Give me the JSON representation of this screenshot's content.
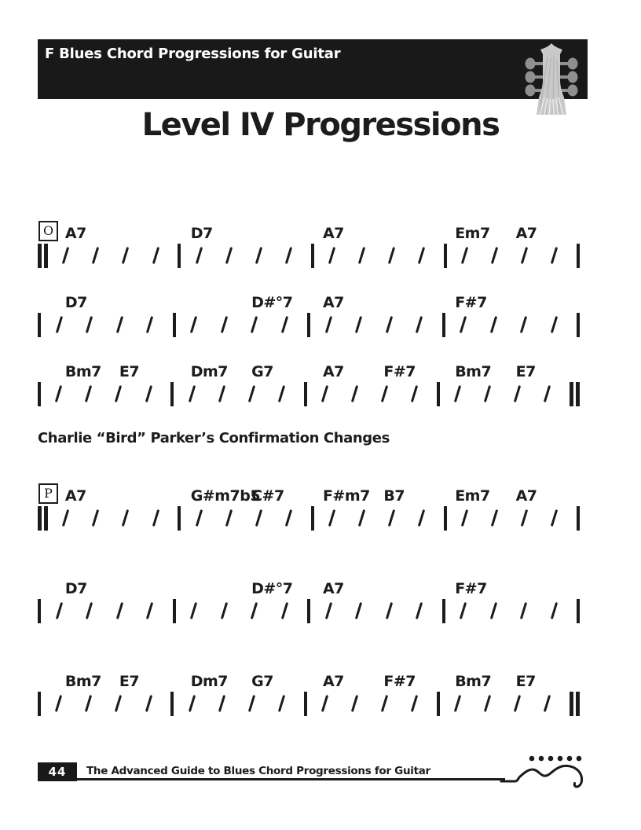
{
  "header": {
    "book_title": "F Blues Chord Progressions for Guitar"
  },
  "page_title": "Level IV Progressions",
  "section_heading": "Charlie “Bird” Parker’s Confirmation Changes",
  "beats_per_measure": 4,
  "progressions": [
    {
      "marker": "O",
      "lines": [
        {
          "start": "double",
          "end": "single",
          "measures": [
            [
              {
                "t": "A7",
                "b": 0
              }
            ],
            [
              {
                "t": "D7",
                "b": 0
              }
            ],
            [
              {
                "t": "A7",
                "b": 0
              }
            ],
            [
              {
                "t": "Em7",
                "b": 0
              },
              {
                "t": "A7",
                "b": 2
              }
            ]
          ]
        },
        {
          "start": "single",
          "end": "single",
          "measures": [
            [
              {
                "t": "D7",
                "b": 0
              }
            ],
            [
              {
                "t": "D#°7",
                "b": 2
              }
            ],
            [
              {
                "t": "A7",
                "b": 0
              }
            ],
            [
              {
                "t": "F#7",
                "b": 0
              }
            ]
          ]
        },
        {
          "start": "single",
          "end": "double",
          "measures": [
            [
              {
                "t": "Bm7",
                "b": 0
              },
              {
                "t": "E7",
                "b": 2
              }
            ],
            [
              {
                "t": "Dm7",
                "b": 0
              },
              {
                "t": "G7",
                "b": 2
              }
            ],
            [
              {
                "t": "A7",
                "b": 0
              },
              {
                "t": "F#7",
                "b": 2
              }
            ],
            [
              {
                "t": "Bm7",
                "b": 0
              },
              {
                "t": "E7",
                "b": 2
              }
            ]
          ]
        }
      ]
    },
    {
      "marker": "P",
      "lines": [
        {
          "start": "double",
          "end": "single",
          "measures": [
            [
              {
                "t": "A7",
                "b": 0
              }
            ],
            [
              {
                "t": "G#m7b5",
                "b": 0
              },
              {
                "t": "C#7",
                "b": 2
              }
            ],
            [
              {
                "t": "F#m7",
                "b": 0
              },
              {
                "t": "B7",
                "b": 2
              }
            ],
            [
              {
                "t": "Em7",
                "b": 0
              },
              {
                "t": "A7",
                "b": 2
              }
            ]
          ]
        },
        {
          "start": "single",
          "end": "single",
          "measures": [
            [
              {
                "t": "D7",
                "b": 0
              }
            ],
            [
              {
                "t": "D#°7",
                "b": 2
              }
            ],
            [
              {
                "t": "A7",
                "b": 0
              }
            ],
            [
              {
                "t": "F#7",
                "b": 0
              }
            ]
          ]
        },
        {
          "start": "single",
          "end": "double",
          "measures": [
            [
              {
                "t": "Bm7",
                "b": 0
              },
              {
                "t": "E7",
                "b": 2
              }
            ],
            [
              {
                "t": "Dm7",
                "b": 0
              },
              {
                "t": "G7",
                "b": 2
              }
            ],
            [
              {
                "t": "A7",
                "b": 0
              },
              {
                "t": "F#7",
                "b": 2
              }
            ],
            [
              {
                "t": "Bm7",
                "b": 0
              },
              {
                "t": "E7",
                "b": 2
              }
            ]
          ]
        }
      ]
    }
  ],
  "footer": {
    "page_number": "44",
    "book_subtitle": "The Advanced Guide to Blues Chord Progressions for Guitar"
  },
  "icons": {
    "header_graphic": "guitar-headstock-icon",
    "footer_graphic": "guitar-body-squiggle-icon"
  },
  "colors": {
    "ink": "#1c1c1c",
    "header_bg": "#191919",
    "headstock_gray": "#c9c9c9",
    "peg_gray": "#8f8f8f"
  }
}
